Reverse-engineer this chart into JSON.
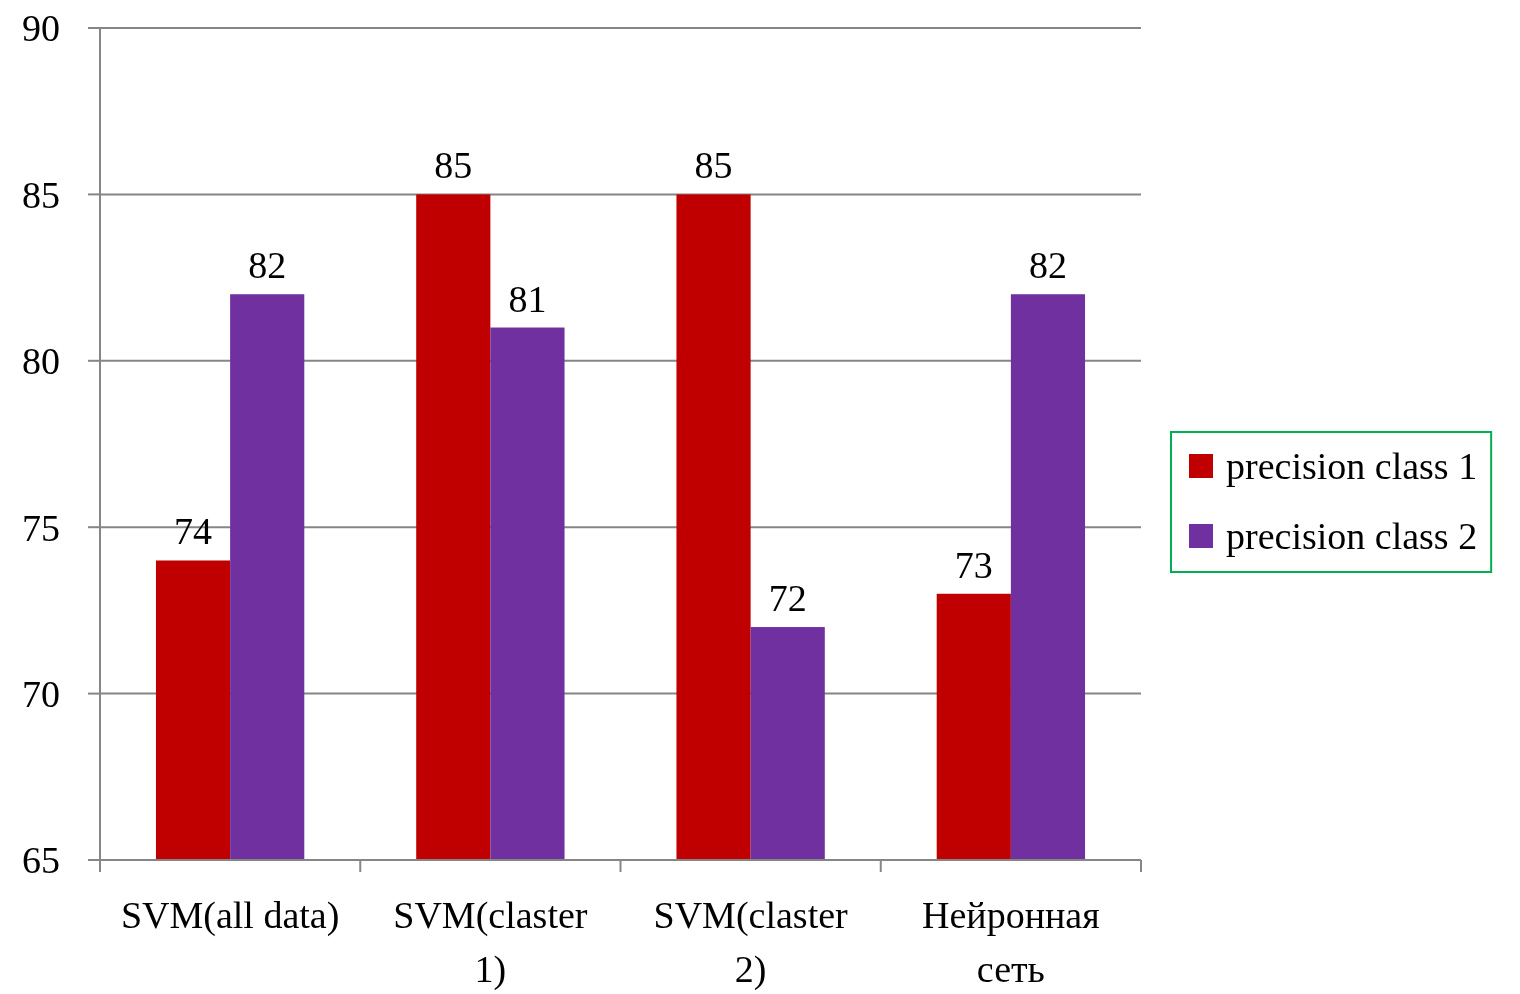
{
  "chart_data": {
    "type": "bar",
    "categories": [
      "SVM(all data)",
      "SVM(claster 1)",
      "SVM(claster 2)",
      "Нейронная сеть"
    ],
    "series": [
      {
        "name": "precision class 1",
        "color": "#c00000",
        "values": [
          74,
          85,
          85,
          73
        ]
      },
      {
        "name": "precision class 2",
        "color": "#7030a0",
        "values": [
          82,
          81,
          72,
          82
        ]
      }
    ],
    "ylim": [
      65,
      90
    ],
    "yticks": [
      65,
      70,
      75,
      80,
      85,
      90
    ],
    "grid": "y",
    "legend": "right",
    "data_labels": true
  }
}
